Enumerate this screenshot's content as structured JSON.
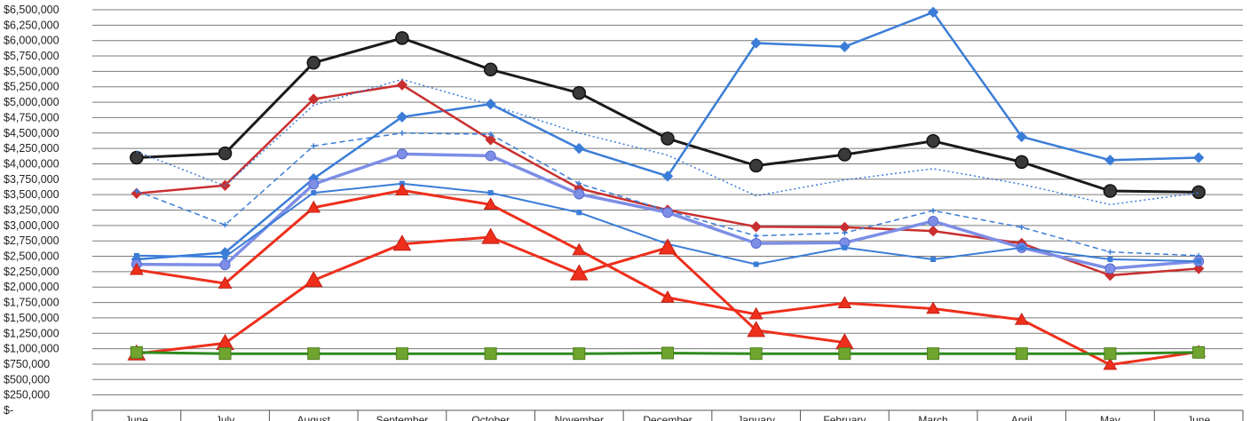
{
  "chart_data": {
    "type": "line",
    "title": "",
    "xlabel": "",
    "ylabel": "",
    "ylim": [
      0,
      6500000
    ],
    "y_tick_step": 250000,
    "grid": true,
    "legend": "none",
    "categories": [
      "June",
      "July",
      "August",
      "September",
      "October",
      "November",
      "December",
      "January",
      "February",
      "March",
      "April",
      "May",
      "June"
    ],
    "series": [
      {
        "color": "#1a1a1a",
        "style": "solid",
        "marker": "circle",
        "width": 3,
        "values": [
          4100000,
          4170000,
          5640000,
          6040000,
          5530000,
          5150000,
          4410000,
          3970000,
          4150000,
          4370000,
          4030000,
          3560000,
          3540000
        ]
      },
      {
        "color": "#3b7dd8",
        "style": "solid",
        "marker": "diamond",
        "width": 2.5,
        "values": [
          2450000,
          2560000,
          3760000,
          4760000,
          4970000,
          4250000,
          3800000,
          5960000,
          5900000,
          6460000,
          4440000,
          4060000,
          4100000
        ]
      },
      {
        "color": "#c92f2f",
        "style": "solid",
        "marker": "diamond",
        "width": 2.5,
        "values": [
          3520000,
          3650000,
          5050000,
          5280000,
          4390000,
          3600000,
          3250000,
          2980000,
          2970000,
          2910000,
          2710000,
          2190000,
          2300000
        ]
      },
      {
        "color": "#3b7dd8",
        "style": "dotted",
        "marker": "none",
        "width": 1.5,
        "values": [
          4200000,
          3640000,
          4950000,
          5370000,
          4960000,
          4500000,
          4140000,
          3480000,
          3740000,
          3920000,
          3670000,
          3340000,
          3530000
        ]
      },
      {
        "color": "#3b7dd8",
        "style": "dashed",
        "marker": "plus",
        "width": 1.5,
        "values": [
          3560000,
          3010000,
          4290000,
          4500000,
          4480000,
          3680000,
          3240000,
          2830000,
          2880000,
          3240000,
          2970000,
          2570000,
          2510000
        ]
      },
      {
        "color": "#7d8ee6",
        "style": "solid",
        "marker": "circle-small",
        "width": 3.5,
        "values": [
          2370000,
          2360000,
          3670000,
          4160000,
          4130000,
          3510000,
          3210000,
          2710000,
          2720000,
          3070000,
          2640000,
          2300000,
          2420000
        ]
      },
      {
        "color": "#3b7dd8",
        "style": "solid",
        "marker": "square",
        "width": 2,
        "values": [
          2510000,
          2490000,
          3530000,
          3680000,
          3530000,
          3210000,
          2700000,
          2370000,
          2640000,
          2450000,
          2640000,
          2450000,
          2420000
        ]
      },
      {
        "color": "#ee2f1c",
        "style": "solid",
        "marker": "triangle",
        "width": 3,
        "values": [
          2280000,
          2060000,
          3290000,
          3570000,
          3340000,
          2600000,
          1830000,
          1560000,
          1740000,
          1650000,
          1470000,
          740000,
          950000
        ]
      },
      {
        "color": "#ee2f1c",
        "style": "solid",
        "marker": "triangle-large",
        "width": 3,
        "values": [
          920000,
          1090000,
          2110000,
          2700000,
          2810000,
          2220000,
          2640000,
          1300000,
          1100000,
          null,
          null,
          null,
          null
        ]
      },
      {
        "color": "#2e8b1e",
        "style": "solid",
        "marker": "square-green",
        "width": 3,
        "values": [
          940000,
          920000,
          920000,
          920000,
          920000,
          920000,
          930000,
          920000,
          920000,
          920000,
          920000,
          920000,
          940000
        ]
      }
    ]
  }
}
